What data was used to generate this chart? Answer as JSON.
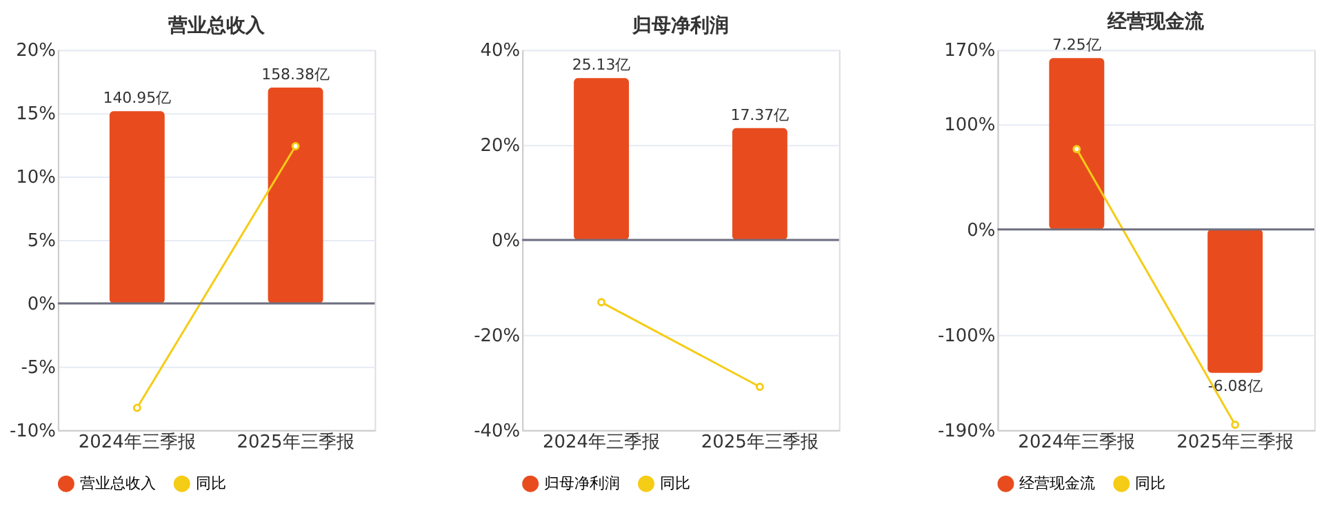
{
  "chart_data": [
    {
      "type": "bar",
      "title": "营业总收入",
      "categories": [
        "2024年三季报",
        "2025年三季报"
      ],
      "series": [
        {
          "name": "营业总收入",
          "color": "#e84c1e",
          "values": [
            140.95,
            158.38
          ],
          "value_labels": [
            "140.95亿",
            "158.38亿"
          ],
          "axis": "y2"
        },
        {
          "name": "同比",
          "type": "line",
          "color": "#f5cc16",
          "values": [
            -8.25,
            12.4
          ],
          "marker": "circle"
        }
      ],
      "ylim": [
        -10,
        20
      ],
      "yticks": [
        {
          "value": -10,
          "label": "-10%"
        },
        {
          "value": -5,
          "label": "-5%"
        },
        {
          "value": 0,
          "label": "0%"
        },
        {
          "value": 5,
          "label": "5%"
        },
        {
          "value": 10,
          "label": "10%"
        },
        {
          "value": 15,
          "label": "15%"
        },
        {
          "value": 20,
          "label": "20%"
        }
      ],
      "y2lim": [
        -93,
        186
      ],
      "grid": "y",
      "legend": "bottom"
    },
    {
      "type": "bar",
      "title": "归母净利润",
      "categories": [
        "2024年三季报",
        "2025年三季报"
      ],
      "series": [
        {
          "name": "归母净利润",
          "color": "#e84c1e",
          "values": [
            25.13,
            17.37
          ],
          "value_labels": [
            "25.13亿",
            "17.37亿"
          ],
          "axis": "y2"
        },
        {
          "name": "同比",
          "type": "line",
          "color": "#f5cc16",
          "values": [
            -13.1,
            -30.9
          ],
          "marker": "circle"
        }
      ],
      "ylim": [
        -40,
        40
      ],
      "yticks": [
        {
          "value": -40,
          "label": "-40%"
        },
        {
          "value": -20,
          "label": "-20%"
        },
        {
          "value": 0,
          "label": "0%"
        },
        {
          "value": 20,
          "label": "20%"
        },
        {
          "value": 40,
          "label": "40%"
        }
      ],
      "y2lim": [
        -29.5,
        29.5
      ],
      "grid": "y",
      "legend": "bottom"
    },
    {
      "type": "bar",
      "title": "经营现金流",
      "categories": [
        "2024年三季报",
        "2025年三季报"
      ],
      "series": [
        {
          "name": "经营现金流",
          "color": "#e84c1e",
          "values": [
            7.25,
            -6.08
          ],
          "value_labels": [
            "7.25亿",
            "-6.08亿"
          ],
          "axis": "y2"
        },
        {
          "name": "同比",
          "type": "line",
          "color": "#f5cc16",
          "values": [
            76,
            -185
          ],
          "marker": "circle"
        }
      ],
      "ylim": [
        -190,
        170
      ],
      "yticks": [
        {
          "value": -190,
          "label": "-190%"
        },
        {
          "value": -100,
          "label": "-100%"
        },
        {
          "value": 0,
          "label": "0%"
        },
        {
          "value": 100,
          "label": "100%"
        },
        {
          "value": 170,
          "label": "170%"
        }
      ],
      "y2lim": [
        -8.5,
        7.6
      ],
      "grid": "y",
      "legend": "bottom"
    }
  ]
}
